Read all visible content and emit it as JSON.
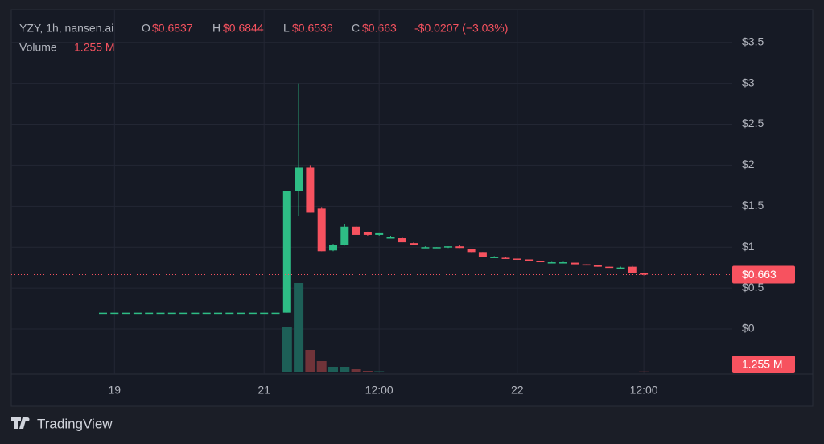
{
  "chart_data": {
    "type": "candlestick",
    "legend": {
      "symbol": "YZY, 1h, nansen.ai",
      "open_key": "O",
      "open": "$0.6837",
      "high_key": "H",
      "high": "$0.6844",
      "low_key": "L",
      "low": "$0.6536",
      "close_key": "C",
      "close": "$0.663",
      "change": "-$0.0207 (−3.03%)",
      "volume_key": "Volume",
      "volume": "1.255 M"
    },
    "categories": [
      null,
      "19",
      null,
      null,
      null,
      null,
      null,
      null,
      null,
      null,
      null,
      null,
      null,
      null,
      "21",
      null,
      null,
      null,
      null,
      null,
      null,
      null,
      null,
      null,
      "12:00",
      null,
      null,
      null,
      null,
      null,
      null,
      null,
      null,
      null,
      null,
      null,
      "22",
      null,
      null,
      null,
      null,
      null,
      null,
      null,
      null,
      null,
      null,
      "12:00"
    ],
    "open": [
      0.2,
      0.2,
      0.2,
      0.2,
      0.2,
      0.2,
      0.2,
      0.2,
      0.2,
      0.2,
      0.2,
      0.2,
      0.2,
      0.2,
      0.2,
      0.2,
      0.2,
      1.68,
      1.97,
      1.47,
      0.96,
      1.03,
      1.25,
      1.18,
      1.15,
      1.12,
      1.11,
      1.05,
      1.0,
      1.0,
      1.0,
      1.01,
      0.98,
      0.94,
      0.88,
      0.87,
      0.86,
      0.85,
      0.83,
      0.81,
      0.81,
      0.81,
      0.79,
      0.78,
      0.76,
      0.75,
      0.76,
      0.6837
    ],
    "high": [
      0.2,
      0.2,
      0.2,
      0.2,
      0.2,
      0.2,
      0.2,
      0.2,
      0.2,
      0.2,
      0.2,
      0.2,
      0.2,
      0.2,
      0.2,
      0.2,
      1.68,
      3.0,
      2.0,
      1.49,
      1.04,
      1.28,
      1.26,
      1.19,
      1.17,
      1.13,
      1.12,
      1.06,
      1.01,
      1.0,
      1.01,
      1.03,
      0.98,
      0.94,
      0.89,
      0.88,
      0.86,
      0.85,
      0.83,
      0.82,
      0.82,
      0.81,
      0.79,
      0.78,
      0.76,
      0.76,
      0.77,
      0.6844
    ],
    "low": [
      0.2,
      0.2,
      0.2,
      0.2,
      0.2,
      0.2,
      0.2,
      0.2,
      0.2,
      0.2,
      0.2,
      0.2,
      0.2,
      0.2,
      0.2,
      0.2,
      0.2,
      1.38,
      1.42,
      0.95,
      0.95,
      1.02,
      1.15,
      1.14,
      1.14,
      1.11,
      1.06,
      1.03,
      0.99,
      0.99,
      0.99,
      0.99,
      0.94,
      0.88,
      0.87,
      0.86,
      0.85,
      0.83,
      0.82,
      0.81,
      0.81,
      0.79,
      0.78,
      0.76,
      0.75,
      0.75,
      0.68,
      0.6536
    ],
    "close": [
      0.2,
      0.2,
      0.2,
      0.2,
      0.2,
      0.2,
      0.2,
      0.2,
      0.2,
      0.2,
      0.2,
      0.2,
      0.2,
      0.2,
      0.2,
      0.2,
      1.68,
      1.97,
      1.42,
      0.95,
      1.03,
      1.25,
      1.15,
      1.15,
      1.17,
      1.12,
      1.06,
      1.03,
      1.0,
      1.0,
      1.01,
      0.99,
      0.94,
      0.88,
      0.88,
      0.86,
      0.85,
      0.83,
      0.82,
      0.815,
      0.815,
      0.79,
      0.78,
      0.76,
      0.75,
      0.75,
      0.68,
      0.663
    ],
    "volume": [
      0.5,
      0.5,
      0.5,
      0.5,
      0.5,
      0.5,
      0.5,
      0.5,
      0.5,
      0.5,
      0.5,
      0.5,
      0.5,
      0.5,
      0.5,
      0.5,
      57,
      111,
      28,
      14,
      7,
      7,
      4,
      2,
      1.5,
      1,
      1,
      1,
      1,
      1,
      1,
      1,
      1,
      1,
      1,
      1,
      1,
      1,
      1,
      1,
      1,
      1,
      1,
      1,
      1,
      1,
      1,
      1.255
    ],
    "up_color": "#2ebd85",
    "down_color": "#f7525f",
    "up_volume_color": "#1d5f57",
    "down_volume_color": "#703339",
    "ylim": [
      -0.55,
      3.9
    ],
    "yticks": [
      {
        "value": 0,
        "label": "$0"
      },
      {
        "value": 0.5,
        "label": "$0.5"
      },
      {
        "value": 1,
        "label": "$1"
      },
      {
        "value": 1.5,
        "label": "$1.5"
      },
      {
        "value": 2,
        "label": "$2"
      },
      {
        "value": 2.5,
        "label": "$2.5"
      },
      {
        "value": 3,
        "label": "$3"
      },
      {
        "value": 3.5,
        "label": "$3.5"
      }
    ],
    "volume_lim": [
      0,
      120
    ],
    "last_price": {
      "value": 0.663,
      "label": "$0.663"
    },
    "last_volume": {
      "value": 1.255,
      "label": "1.255 M"
    },
    "grid": true,
    "watermark": "TradingView"
  }
}
